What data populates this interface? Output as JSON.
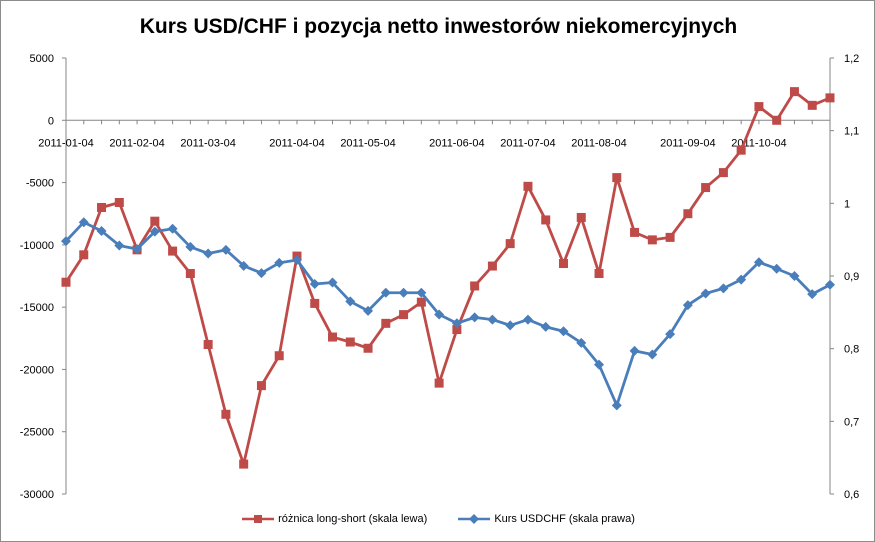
{
  "chart_data": {
    "type": "line",
    "title": "Kurs USD/CHF i pozycja netto inwestorów niekomercyjnych",
    "x_labels": [
      "2011-01-04",
      "2011-02-04",
      "2011-03-04",
      "2011-04-04",
      "2011-05-04",
      "2011-06-04",
      "2011-07-04",
      "2011-08-04",
      "2011-09-04",
      "2011-10-04"
    ],
    "x_label_index": [
      0,
      4,
      8,
      13,
      17,
      22,
      26,
      30,
      35,
      39
    ],
    "n_points": 44,
    "y_left": {
      "min": -30000,
      "max": 5000,
      "step": 5000,
      "ticks": [
        "5000",
        "0",
        "-5000",
        "-10000",
        "-15000",
        "-20000",
        "-25000",
        "-30000"
      ]
    },
    "y_right": {
      "min": 0.6,
      "max": 1.2,
      "step": 0.1,
      "ticks": [
        "1,2",
        "1,1",
        "1",
        "0,9",
        "0,8",
        "0,7",
        "0,6"
      ]
    },
    "series": [
      {
        "name": "różnica long-short (skala lewa)",
        "axis": "left",
        "color": "#be4b48",
        "marker": "square",
        "values": [
          -13000,
          -10800,
          -7000,
          -6600,
          -10400,
          -8100,
          -10500,
          -12300,
          -18000,
          -23600,
          -27600,
          -21300,
          -18900,
          -10900,
          -14700,
          -17400,
          -17800,
          -18300,
          -16300,
          -15600,
          -14600,
          -21100,
          -16800,
          -13300,
          -11700,
          -9900,
          -5300,
          -8000,
          -11500,
          -7800,
          -12300,
          -4600,
          -9000,
          -9600,
          -9400,
          -7500,
          -5400,
          -4200,
          -2400,
          1100,
          0,
          2300,
          1200,
          1800
        ]
      },
      {
        "name": "Kurs USDCHF (skala prawa)",
        "axis": "right",
        "color": "#4a7ebb",
        "marker": "diamond",
        "values": [
          0.948,
          0.974,
          0.962,
          0.942,
          0.937,
          0.961,
          0.965,
          0.94,
          0.931,
          0.936,
          0.914,
          0.904,
          0.918,
          0.922,
          0.889,
          0.891,
          0.865,
          0.852,
          0.877,
          0.877,
          0.877,
          0.847,
          0.835,
          0.843,
          0.84,
          0.832,
          0.84,
          0.83,
          0.824,
          0.808,
          0.778,
          0.722,
          0.797,
          0.792,
          0.82,
          0.86,
          0.876,
          0.883,
          0.895,
          0.919,
          0.91,
          0.9,
          0.875,
          0.888
        ]
      }
    ],
    "grid": false,
    "legend_position": "bottom"
  }
}
